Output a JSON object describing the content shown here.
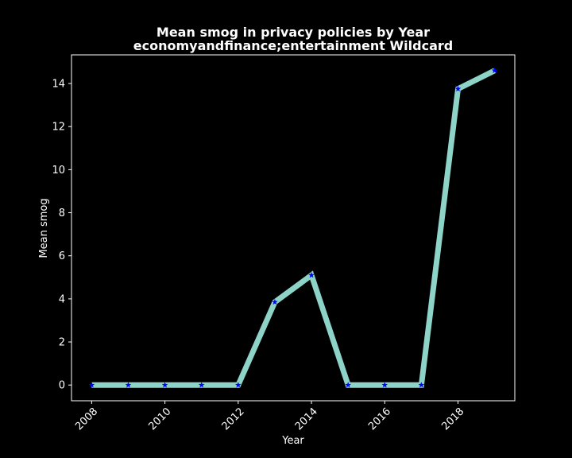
{
  "chart_data": {
    "type": "line",
    "title_line1": "Mean smog in privacy policies by Year",
    "title_line2": "economyandfinance;entertainment Wildcard",
    "xlabel": "Year",
    "ylabel": "Mean smog",
    "x": [
      2008,
      2009,
      2010,
      2011,
      2012,
      2013,
      2014,
      2015,
      2016,
      2017,
      2018,
      2019
    ],
    "values": [
      0,
      0,
      0,
      0,
      0,
      3.85,
      5.1,
      0,
      0,
      0,
      13.75,
      14.6
    ],
    "xlim": [
      2007.45,
      2019.55
    ],
    "ylim": [
      -0.73,
      15.33
    ],
    "xticks": [
      2008,
      2010,
      2012,
      2014,
      2016,
      2018
    ],
    "yticks": [
      0,
      2,
      4,
      6,
      8,
      10,
      12,
      14
    ],
    "grid": false,
    "colors": {
      "background": "#000000",
      "line": "#8dd3c7",
      "marker": "#0000ff",
      "axes": "#ffffff",
      "text": "#ffffff"
    }
  }
}
